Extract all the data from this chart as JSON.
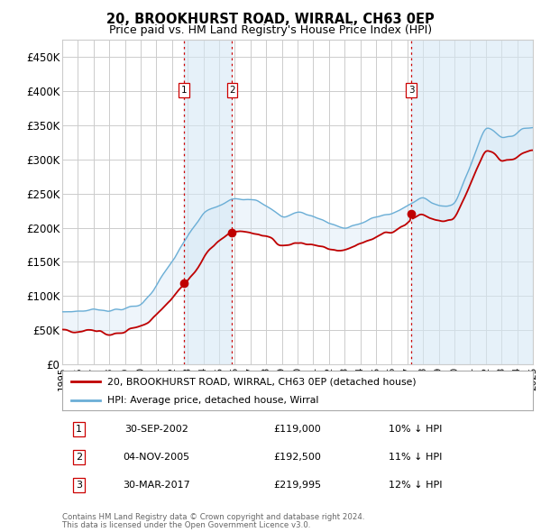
{
  "title": "20, BROOKHURST ROAD, WIRRAL, CH63 0EP",
  "subtitle": "Price paid vs. HM Land Registry's House Price Index (HPI)",
  "hpi_label": "HPI: Average price, detached house, Wirral",
  "price_label": "20, BROOKHURST ROAD, WIRRAL, CH63 0EP (detached house)",
  "footer_line1": "Contains HM Land Registry data © Crown copyright and database right 2024.",
  "footer_line2": "This data is licensed under the Open Government Licence v3.0.",
  "sales": [
    {
      "num": 1,
      "date": "30-SEP-2002",
      "price": 119000,
      "pct": "10%",
      "dir": "↓"
    },
    {
      "num": 2,
      "date": "04-NOV-2005",
      "price": 192500,
      "pct": "11%",
      "dir": "↓"
    },
    {
      "num": 3,
      "date": "30-MAR-2017",
      "price": 219995,
      "pct": "12%",
      "dir": "↓"
    }
  ],
  "hpi_color": "#6aaed6",
  "price_color": "#c00000",
  "dashed_color": "#cc0000",
  "shade_color": "#d6e8f5",
  "grid_color": "#cccccc",
  "ylim": [
    0,
    475000
  ],
  "yticks": [
    0,
    50000,
    100000,
    150000,
    200000,
    250000,
    300000,
    350000,
    400000,
    450000
  ],
  "ytick_labels": [
    "£0",
    "£50K",
    "£100K",
    "£150K",
    "£200K",
    "£250K",
    "£300K",
    "£350K",
    "£400K",
    "£450K"
  ],
  "x_start_year": 1995,
  "x_end_year": 2025,
  "sale_years": [
    2002.75,
    2005.833,
    2017.25
  ],
  "sale_prices": [
    119000,
    192500,
    219995
  ]
}
